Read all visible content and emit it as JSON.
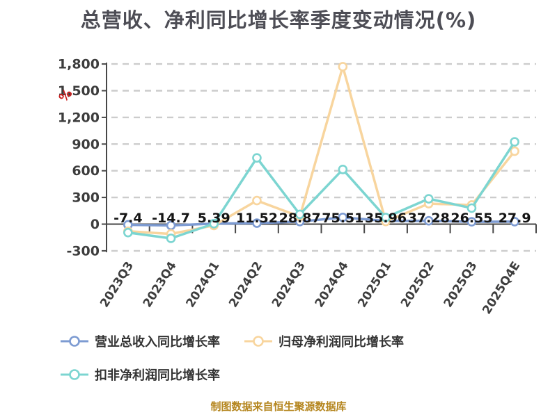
{
  "title": "总营收、净利同比增长率季度变动情况(%)",
  "footer": {
    "text": "制图数据来自恒生聚源数据库"
  },
  "colors": {
    "background": "#ffffff",
    "title": "#4d4d55",
    "grid": "#cccccc",
    "axis_line": "#474747",
    "tick_label": "#3d3d3d",
    "data_label": "#141414",
    "unit_label": "#cc2020",
    "legend_text": "#333333",
    "footer_text": "#b5861f",
    "series_blue": "#7d9bd2",
    "series_orange": "#f8d59e",
    "series_teal": "#7cd5d1"
  },
  "y_axis_unit_label": "%",
  "chart_data": {
    "type": "line",
    "title": "总营收、净利同比增长率季度变动情况(%)",
    "xlabel": "",
    "ylabel": "%",
    "ylim": [
      -300,
      1800
    ],
    "y_ticks": [
      1800,
      1500,
      1200,
      900,
      600,
      300,
      0,
      -300
    ],
    "y_tick_labels": [
      "1,800",
      "1,500",
      "1,200",
      "900",
      "600",
      "300",
      "0",
      "-300"
    ],
    "grid": "horizontal-dashed",
    "legend_position": "bottom-left",
    "categories": [
      "2023Q3",
      "2023Q4",
      "2024Q1",
      "2024Q2",
      "2024Q3",
      "2024Q4",
      "2025Q1",
      "2025Q2",
      "2025Q3",
      "2025Q4E"
    ],
    "series": [
      {
        "name": "营业总收入同比增长率",
        "color": "#7d9bd2",
        "values": [
          -7.4,
          -14.7,
          5.39,
          11.52,
          28.87,
          75.51,
          35.96,
          37.28,
          26.55,
          27.9
        ],
        "data_labels": [
          "-7.4",
          "-14.7",
          "5.39",
          "11.52",
          "28.87",
          "75.51",
          "35.96",
          "37.28",
          "26.55",
          "27.9"
        ]
      },
      {
        "name": "归母净利润同比增长率",
        "color": "#f8d59e",
        "values": [
          -80,
          -110,
          -15,
          265,
          85,
          1770,
          30,
          230,
          215,
          820
        ]
      },
      {
        "name": "扣非净利润同比增长率",
        "color": "#7cd5d1",
        "values": [
          -95,
          -160,
          5,
          745,
          110,
          615,
          75,
          285,
          180,
          925
        ]
      }
    ]
  }
}
